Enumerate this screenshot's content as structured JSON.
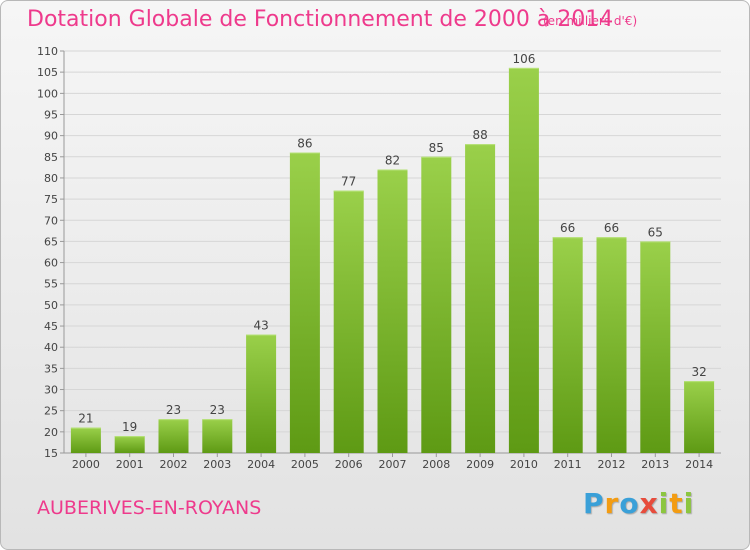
{
  "header": {
    "title": "Dotation Globale de Fonctionnement de 2000 à 2014",
    "subtitle": "(en milliers d'€)"
  },
  "footer": {
    "commune": "AUBERIVES-EN-ROYANS",
    "logo_letters": [
      "P",
      "r",
      "o",
      "x",
      "i",
      "t",
      "i"
    ],
    "logo_colors": [
      "#3aa0d8",
      "#f39c12",
      "#3aa0d8",
      "#e74c3c",
      "#8cc63f",
      "#f39c12",
      "#8cc63f"
    ]
  },
  "chart_data": {
    "type": "bar",
    "categories": [
      "2000",
      "2001",
      "2002",
      "2003",
      "2004",
      "2005",
      "2006",
      "2007",
      "2008",
      "2009",
      "2010",
      "2011",
      "2012",
      "2013",
      "2014"
    ],
    "values": [
      21,
      19,
      23,
      23,
      43,
      86,
      77,
      82,
      85,
      88,
      106,
      66,
      66,
      65,
      32
    ],
    "ylim": [
      15,
      110
    ],
    "yticks": [
      "15",
      "20",
      "25",
      "30",
      "35",
      "40",
      "45",
      "50",
      "55",
      "60",
      "65",
      "70",
      "75",
      "80",
      "85",
      "90",
      "95",
      "100",
      "105",
      "110"
    ],
    "grid": true,
    "bar_color_top": "#9ad04a",
    "bar_color_bottom": "#5e9a14"
  }
}
